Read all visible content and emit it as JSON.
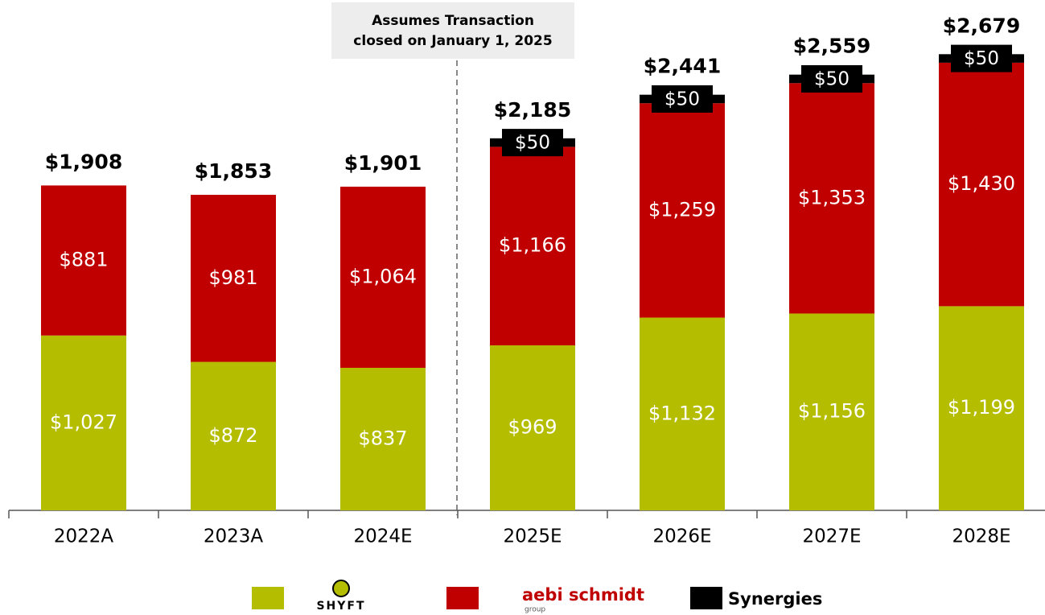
{
  "chart_data": {
    "type": "stacked_bar",
    "annotation": [
      "Assumes Transaction",
      "closed on January 1, 2025"
    ],
    "categories": [
      "2022A",
      "2023A",
      "2024E",
      "2025E",
      "2026E",
      "2027E",
      "2028E"
    ],
    "series": [
      {
        "name": "SHYFT",
        "color": "#b5bd00",
        "values": [
          1027,
          872,
          837,
          969,
          1132,
          1156,
          1199
        ],
        "value_labels": [
          "$1,027",
          "$872",
          "$837",
          "$969",
          "$1,132",
          "$1,156",
          "$1,199"
        ]
      },
      {
        "name": "aebi schmidt",
        "subtext": "group",
        "color": "#c00000",
        "values": [
          881,
          981,
          1064,
          1166,
          1259,
          1353,
          1430
        ],
        "value_labels": [
          "$881",
          "$981",
          "$1,064",
          "$1,166",
          "$1,259",
          "$1,353",
          "$1,430"
        ]
      },
      {
        "name": "Synergies",
        "color": "#000000",
        "values": [
          null,
          null,
          null,
          50,
          50,
          50,
          50
        ],
        "value_labels": [
          null,
          null,
          null,
          "$50",
          "$50",
          "$50",
          "$50"
        ]
      }
    ],
    "totals": [
      1908,
      1853,
      1901,
      2185,
      2441,
      2559,
      2679
    ],
    "total_labels": [
      "$1,908",
      "$1,853",
      "$1,901",
      "$2,185",
      "$2,441",
      "$2,559",
      "$2,679"
    ],
    "ylim": [
      0,
      2950
    ]
  }
}
